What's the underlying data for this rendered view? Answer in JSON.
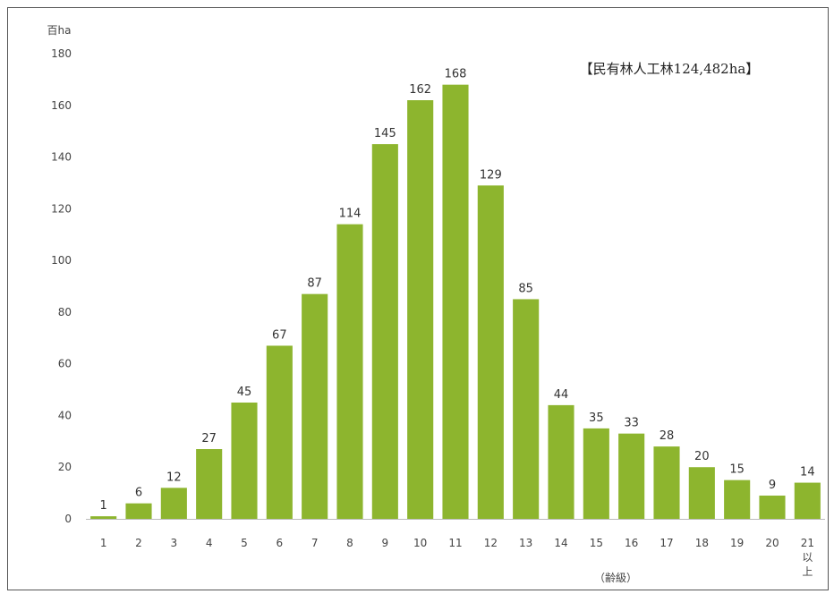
{
  "chart_data": {
    "type": "bar",
    "title": "【民有林人工林124,482ha】",
    "ylabel": "百ha",
    "xlabel": "（齢級）",
    "ylim": [
      0,
      180
    ],
    "yticks": [
      0,
      20,
      40,
      60,
      80,
      100,
      120,
      140,
      160,
      180
    ],
    "categories": [
      "1",
      "2",
      "3",
      "4",
      "5",
      "6",
      "7",
      "8",
      "9",
      "10",
      "11",
      "12",
      "13",
      "14",
      "15",
      "16",
      "17",
      "18",
      "19",
      "20",
      "21以上"
    ],
    "values": [
      1,
      6,
      12,
      27,
      45,
      67,
      87,
      114,
      145,
      162,
      168,
      129,
      85,
      44,
      35,
      33,
      28,
      20,
      15,
      9,
      14
    ],
    "grid": false,
    "bar_color": "#8db52e"
  }
}
